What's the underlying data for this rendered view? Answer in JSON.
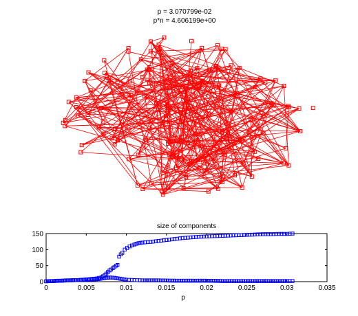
{
  "figure": {
    "graph_title_line1": "p = 3.070799e-02",
    "graph_title_line2": "p*n = 4.606199e+00"
  },
  "chart_data": [
    {
      "type": "scatter",
      "title": "p = 3.070799e-02 / p*n = 4.606199e+00",
      "description_of_marks": "random graph drawing: 150 red square nodes connected by red edges; no axes",
      "node_color": "#ff0000",
      "edge_color": "#ff0000",
      "node_marker": "square"
    },
    {
      "type": "scatter",
      "title": "size of components",
      "xlabel": "p",
      "ylabel": "",
      "xlim": [
        0,
        0.035
      ],
      "ylim": [
        0,
        150
      ],
      "xticks": [
        "0",
        "0.005",
        "0.01",
        "0.015",
        "0.02",
        "0.025",
        "0.03",
        "0.035"
      ],
      "yticks": [
        "0",
        "50",
        "100",
        "150"
      ],
      "marker": "square",
      "color": "#0000ff",
      "series": [
        {
          "values_description": "largest component size",
          "x": [
            0.0,
            0.0005,
            0.001,
            0.0015,
            0.002,
            0.0025,
            0.003,
            0.0035,
            0.004,
            0.0045,
            0.005,
            0.0055,
            0.006,
            0.0063,
            0.0066,
            0.0069,
            0.0071,
            0.0073,
            0.0075,
            0.0077,
            0.0079,
            0.0081,
            0.0083,
            0.0085,
            0.0087,
            0.0089,
            0.0091,
            0.0093,
            0.0095,
            0.0098,
            0.0101,
            0.0104,
            0.0107,
            0.011,
            0.0115,
            0.012,
            0.013,
            0.014,
            0.015,
            0.016,
            0.017,
            0.018,
            0.019,
            0.02,
            0.021,
            0.022,
            0.023,
            0.024,
            0.025,
            0.026,
            0.027,
            0.028,
            0.029,
            0.03,
            0.0307
          ],
          "y": [
            1,
            2,
            2,
            3,
            3,
            4,
            4,
            5,
            5,
            6,
            7,
            8,
            9,
            10,
            12,
            14,
            17,
            20,
            25,
            30,
            35,
            38,
            42,
            45,
            50,
            52,
            78,
            85,
            90,
            100,
            105,
            110,
            113,
            116,
            120,
            122,
            124,
            127,
            130,
            133,
            136,
            138,
            140,
            141,
            142,
            143,
            144,
            145,
            146,
            147,
            148,
            148,
            149,
            149,
            150
          ]
        },
        {
          "values_description": "second largest component size",
          "x": [
            0.0,
            0.001,
            0.002,
            0.003,
            0.004,
            0.005,
            0.006,
            0.0065,
            0.007,
            0.0075,
            0.008,
            0.0085,
            0.009,
            0.0095,
            0.01,
            0.011,
            0.012,
            0.014,
            0.016,
            0.018,
            0.02,
            0.022,
            0.024,
            0.026,
            0.028,
            0.03,
            0.0307
          ],
          "y": [
            1,
            2,
            3,
            4,
            5,
            6,
            7,
            8,
            10,
            12,
            13,
            12,
            10,
            8,
            6,
            5,
            4,
            4,
            3,
            3,
            3,
            2,
            2,
            2,
            2,
            2,
            2
          ]
        }
      ]
    }
  ]
}
